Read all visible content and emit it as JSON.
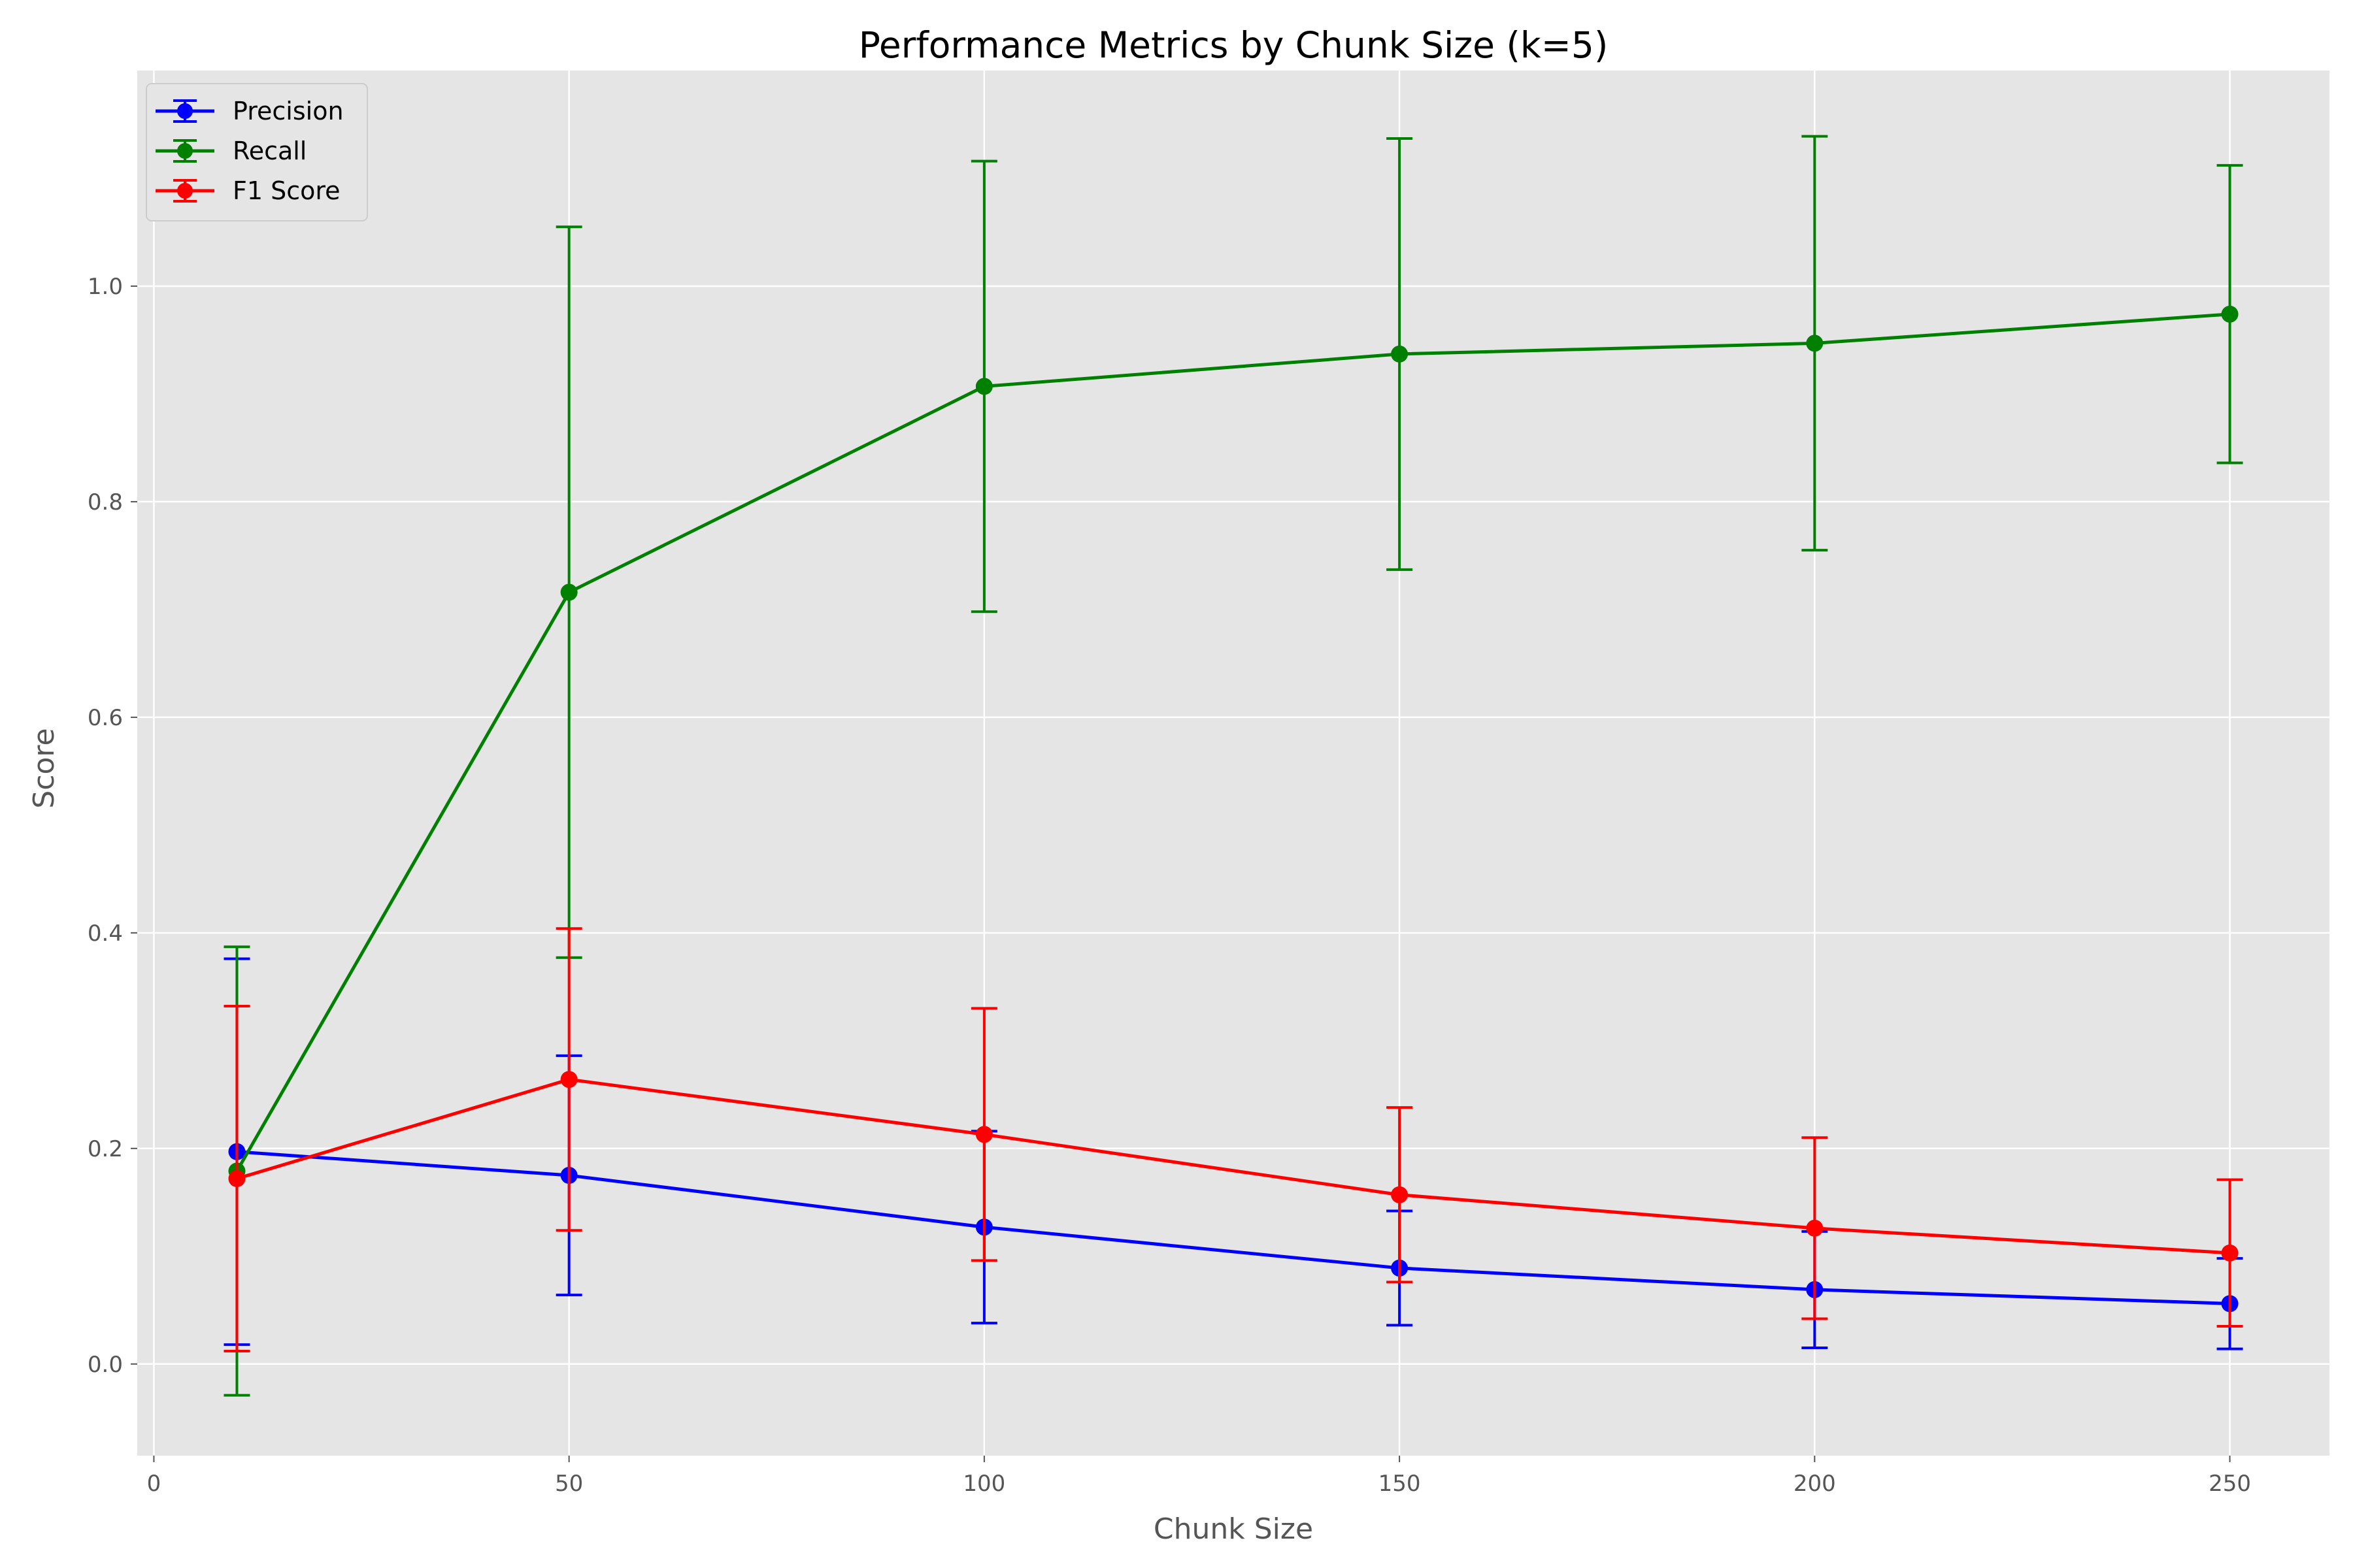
{
  "chart_data": {
    "type": "line",
    "title": "Performance Metrics by Chunk Size (k=5)",
    "xlabel": "Chunk Size",
    "ylabel": "Score",
    "xlim": [
      -2,
      262
    ],
    "ylim": [
      -0.085,
      1.2
    ],
    "xticks": [
      0,
      50,
      100,
      150,
      200,
      250
    ],
    "yticks": [
      0.0,
      0.2,
      0.4,
      0.6,
      0.8,
      1.0
    ],
    "ytick_labels": [
      "0.0",
      "0.2",
      "0.4",
      "0.6",
      "0.8",
      "1.0"
    ],
    "grid": true,
    "legend_position": "top-left",
    "background_color": "#e5e5e5",
    "x": [
      10,
      50,
      100,
      150,
      200,
      250
    ],
    "series": [
      {
        "name": "Precision",
        "color": "#0000ff",
        "values": [
          0.197,
          0.175,
          0.127,
          0.089,
          0.069,
          0.056
        ],
        "error": [
          0.179,
          0.111,
          0.089,
          0.053,
          0.054,
          0.042
        ]
      },
      {
        "name": "Recall",
        "color": "#008000",
        "values": [
          0.179,
          0.716,
          0.907,
          0.937,
          0.947,
          0.974
        ],
        "error": [
          0.208,
          0.339,
          0.209,
          0.2,
          0.192,
          0.138
        ]
      },
      {
        "name": "F1 Score",
        "color": "#ff0000",
        "values": [
          0.172,
          0.264,
          0.213,
          0.157,
          0.126,
          0.103
        ],
        "error": [
          0.16,
          0.14,
          0.117,
          0.081,
          0.084,
          0.068
        ]
      }
    ]
  }
}
